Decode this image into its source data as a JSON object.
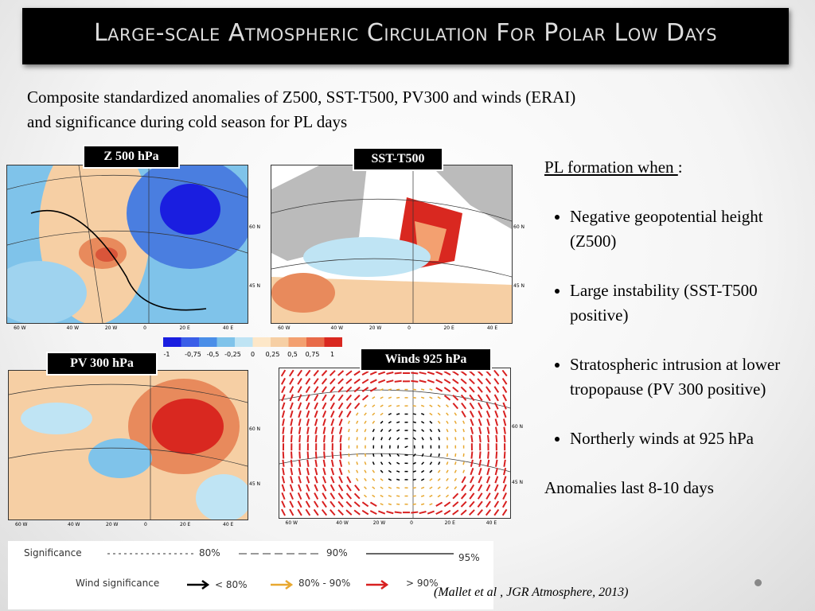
{
  "title": "Large-scale Atmospheric Circulation For Polar Low Days",
  "subtitle": [
    "Composite standardized anomalies of Z500, SST-T500, PV300 and winds (ERAI)",
    "and significance during cold season for PL days"
  ],
  "maps": [
    {
      "label": "Z 500 hPa"
    },
    {
      "label": "SST-T500"
    },
    {
      "label": "PV 300 hPa"
    },
    {
      "label": "Winds 925 hPa"
    }
  ],
  "lon_labels": [
    "60 W",
    "40 W",
    "20 W",
    "0",
    "20 E",
    "40 E"
  ],
  "lat_labels": [
    "60 N",
    "45 N"
  ],
  "colorbar_labels": [
    "-1",
    "-0,75",
    "-0,5",
    "-0,25",
    "0",
    "0,25",
    "0,5",
    "0,75",
    "1"
  ],
  "legend": {
    "significance": "Significance",
    "levels": [
      "80%",
      "90%",
      "95%"
    ],
    "wind_significance": "Wind significance",
    "wind_levels": [
      "< 80%",
      "80% - 90%",
      "> 90%"
    ]
  },
  "bullets": {
    "heading": "PL formation when ",
    "colon": ":",
    "items": [
      "Negative geopotential height (Z500)",
      "Large instability (SST-T500 positive)",
      "Stratospheric intrusion at lower tropopause (PV 300 positive)",
      "Northerly winds at 925 hPa"
    ],
    "footer": "Anomalies last 8-10 days"
  },
  "citation": "(Mallet et al , JGR Atmosphere, 2013)"
}
